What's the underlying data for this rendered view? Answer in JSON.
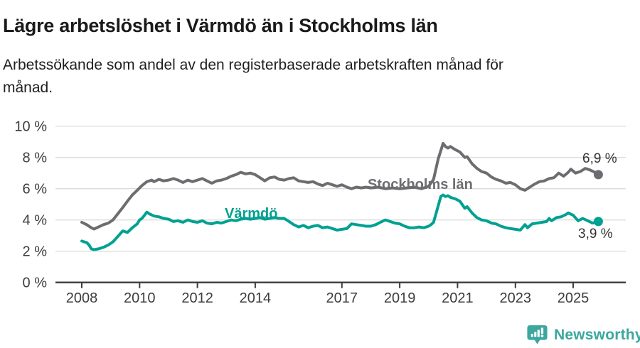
{
  "header": {
    "title": "Lägre arbetslöshet i Värmdö än i Stockholms län",
    "subtitle": {
      "text": "Arbetssökande som andel av den registerbaserade arbetskraften månad för månad.",
      "line1": "Arbetssökande som andel av den registerbaserade arbetskraften månad för",
      "line2": "månad."
    }
  },
  "chart_data": {
    "type": "line",
    "title": "Lägre arbetslöshet i Värmdö än i Stockholms län",
    "subtitle": "Arbetssökande som andel av den registerbaserade arbetskraften månad för månad.",
    "xlabel": "",
    "ylabel": "",
    "unit": "%",
    "decimal_separator": ",",
    "grid": true,
    "legend_position": "inline-labels-on-lines",
    "ylim": [
      0,
      10
    ],
    "xlim": [
      2007.1,
      2026.8
    ],
    "y_ticks": [
      {
        "value": 10,
        "label": "10 %"
      },
      {
        "value": 8,
        "label": "8 %"
      },
      {
        "value": 6,
        "label": "6 %"
      },
      {
        "value": 4,
        "label": "4 %"
      },
      {
        "value": 2,
        "label": "2 %"
      },
      {
        "value": 0,
        "label": "0 %"
      }
    ],
    "x_ticks": [
      {
        "value": 2008,
        "label": "2008"
      },
      {
        "value": 2010,
        "label": "2010"
      },
      {
        "value": 2012,
        "label": "2012"
      },
      {
        "value": 2014,
        "label": "2014"
      },
      {
        "value": 2017,
        "label": "2017"
      },
      {
        "value": 2019,
        "label": "2019"
      },
      {
        "value": 2021,
        "label": "2021"
      },
      {
        "value": 2023,
        "label": "2023"
      },
      {
        "value": 2025,
        "label": "2025"
      }
    ],
    "series": [
      {
        "name": "Stockholms län",
        "color": "#6d6d71",
        "end_value": 6.9,
        "end_label": "6,9 %",
        "points": [
          [
            2008.0,
            3.85
          ],
          [
            2008.17,
            3.7
          ],
          [
            2008.33,
            3.5
          ],
          [
            2008.42,
            3.42
          ],
          [
            2008.58,
            3.55
          ],
          [
            2008.75,
            3.7
          ],
          [
            2008.92,
            3.8
          ],
          [
            2009.08,
            4.0
          ],
          [
            2009.25,
            4.4
          ],
          [
            2009.42,
            4.8
          ],
          [
            2009.58,
            5.2
          ],
          [
            2009.75,
            5.6
          ],
          [
            2009.92,
            5.9
          ],
          [
            2010.08,
            6.2
          ],
          [
            2010.25,
            6.45
          ],
          [
            2010.42,
            6.55
          ],
          [
            2010.5,
            6.45
          ],
          [
            2010.67,
            6.6
          ],
          [
            2010.83,
            6.5
          ],
          [
            2011.0,
            6.55
          ],
          [
            2011.17,
            6.65
          ],
          [
            2011.33,
            6.55
          ],
          [
            2011.5,
            6.4
          ],
          [
            2011.67,
            6.55
          ],
          [
            2011.83,
            6.45
          ],
          [
            2012.0,
            6.55
          ],
          [
            2012.17,
            6.65
          ],
          [
            2012.33,
            6.5
          ],
          [
            2012.5,
            6.35
          ],
          [
            2012.67,
            6.5
          ],
          [
            2012.83,
            6.55
          ],
          [
            2013.0,
            6.65
          ],
          [
            2013.17,
            6.8
          ],
          [
            2013.33,
            6.9
          ],
          [
            2013.5,
            7.05
          ],
          [
            2013.67,
            6.95
          ],
          [
            2013.83,
            7.0
          ],
          [
            2014.0,
            6.9
          ],
          [
            2014.17,
            6.7
          ],
          [
            2014.33,
            6.5
          ],
          [
            2014.5,
            6.7
          ],
          [
            2014.67,
            6.75
          ],
          [
            2014.83,
            6.6
          ],
          [
            2015.0,
            6.55
          ],
          [
            2015.17,
            6.65
          ],
          [
            2015.33,
            6.7
          ],
          [
            2015.5,
            6.5
          ],
          [
            2015.67,
            6.45
          ],
          [
            2015.83,
            6.4
          ],
          [
            2016.0,
            6.45
          ],
          [
            2016.17,
            6.3
          ],
          [
            2016.33,
            6.2
          ],
          [
            2016.5,
            6.35
          ],
          [
            2016.67,
            6.25
          ],
          [
            2016.83,
            6.15
          ],
          [
            2017.0,
            6.25
          ],
          [
            2017.17,
            6.1
          ],
          [
            2017.33,
            6.0
          ],
          [
            2017.5,
            6.1
          ],
          [
            2017.67,
            6.05
          ],
          [
            2017.83,
            6.1
          ],
          [
            2018.0,
            6.05
          ],
          [
            2018.25,
            6.1
          ],
          [
            2018.5,
            6.0
          ],
          [
            2018.75,
            6.05
          ],
          [
            2019.0,
            6.0
          ],
          [
            2019.25,
            6.05
          ],
          [
            2019.5,
            6.1
          ],
          [
            2019.75,
            6.0
          ],
          [
            2020.0,
            6.15
          ],
          [
            2020.17,
            6.6
          ],
          [
            2020.33,
            7.9
          ],
          [
            2020.5,
            8.9
          ],
          [
            2020.58,
            8.7
          ],
          [
            2020.67,
            8.6
          ],
          [
            2020.75,
            8.7
          ],
          [
            2020.92,
            8.5
          ],
          [
            2021.08,
            8.35
          ],
          [
            2021.25,
            8.0
          ],
          [
            2021.33,
            8.05
          ],
          [
            2021.5,
            7.6
          ],
          [
            2021.67,
            7.3
          ],
          [
            2021.83,
            7.1
          ],
          [
            2022.0,
            7.0
          ],
          [
            2022.17,
            6.75
          ],
          [
            2022.33,
            6.6
          ],
          [
            2022.5,
            6.5
          ],
          [
            2022.67,
            6.35
          ],
          [
            2022.83,
            6.4
          ],
          [
            2023.0,
            6.25
          ],
          [
            2023.17,
            6.0
          ],
          [
            2023.33,
            5.9
          ],
          [
            2023.5,
            6.1
          ],
          [
            2023.67,
            6.3
          ],
          [
            2023.83,
            6.45
          ],
          [
            2024.0,
            6.5
          ],
          [
            2024.17,
            6.65
          ],
          [
            2024.33,
            6.7
          ],
          [
            2024.5,
            7.0
          ],
          [
            2024.67,
            6.8
          ],
          [
            2024.83,
            7.05
          ],
          [
            2024.92,
            7.25
          ],
          [
            2025.08,
            7.0
          ],
          [
            2025.25,
            7.1
          ],
          [
            2025.42,
            7.3
          ],
          [
            2025.58,
            7.2
          ],
          [
            2025.75,
            7.05
          ],
          [
            2025.87,
            6.9
          ]
        ]
      },
      {
        "name": "Värmdö",
        "color": "#00a192",
        "end_value": 3.9,
        "end_label": "3,9 %",
        "points": [
          [
            2008.0,
            2.65
          ],
          [
            2008.08,
            2.6
          ],
          [
            2008.17,
            2.55
          ],
          [
            2008.25,
            2.4
          ],
          [
            2008.33,
            2.15
          ],
          [
            2008.42,
            2.1
          ],
          [
            2008.58,
            2.15
          ],
          [
            2008.75,
            2.25
          ],
          [
            2008.92,
            2.4
          ],
          [
            2009.08,
            2.6
          ],
          [
            2009.25,
            2.95
          ],
          [
            2009.42,
            3.3
          ],
          [
            2009.5,
            3.25
          ],
          [
            2009.58,
            3.2
          ],
          [
            2009.75,
            3.5
          ],
          [
            2009.92,
            3.75
          ],
          [
            2010.0,
            4.0
          ],
          [
            2010.08,
            4.1
          ],
          [
            2010.17,
            4.3
          ],
          [
            2010.25,
            4.5
          ],
          [
            2010.33,
            4.4
          ],
          [
            2010.5,
            4.25
          ],
          [
            2010.67,
            4.2
          ],
          [
            2010.83,
            4.1
          ],
          [
            2011.0,
            4.05
          ],
          [
            2011.17,
            3.9
          ],
          [
            2011.33,
            3.95
          ],
          [
            2011.5,
            3.85
          ],
          [
            2011.67,
            4.0
          ],
          [
            2011.83,
            3.9
          ],
          [
            2012.0,
            3.85
          ],
          [
            2012.17,
            3.95
          ],
          [
            2012.33,
            3.8
          ],
          [
            2012.5,
            3.75
          ],
          [
            2012.67,
            3.85
          ],
          [
            2012.83,
            3.8
          ],
          [
            2013.0,
            3.9
          ],
          [
            2013.17,
            4.0
          ],
          [
            2013.33,
            3.95
          ],
          [
            2013.5,
            4.05
          ],
          [
            2013.67,
            4.1
          ],
          [
            2013.83,
            4.05
          ],
          [
            2014.0,
            4.1
          ],
          [
            2014.17,
            4.15
          ],
          [
            2014.33,
            4.05
          ],
          [
            2014.5,
            4.1
          ],
          [
            2014.67,
            4.15
          ],
          [
            2014.83,
            4.1
          ],
          [
            2015.0,
            4.1
          ],
          [
            2015.17,
            3.9
          ],
          [
            2015.33,
            3.7
          ],
          [
            2015.5,
            3.55
          ],
          [
            2015.67,
            3.65
          ],
          [
            2015.83,
            3.5
          ],
          [
            2016.0,
            3.6
          ],
          [
            2016.17,
            3.65
          ],
          [
            2016.33,
            3.5
          ],
          [
            2016.5,
            3.55
          ],
          [
            2016.67,
            3.45
          ],
          [
            2016.83,
            3.35
          ],
          [
            2017.0,
            3.4
          ],
          [
            2017.17,
            3.45
          ],
          [
            2017.33,
            3.75
          ],
          [
            2017.5,
            3.7
          ],
          [
            2017.67,
            3.65
          ],
          [
            2017.83,
            3.6
          ],
          [
            2018.0,
            3.6
          ],
          [
            2018.17,
            3.7
          ],
          [
            2018.33,
            3.85
          ],
          [
            2018.5,
            4.0
          ],
          [
            2018.67,
            3.9
          ],
          [
            2018.83,
            3.8
          ],
          [
            2019.0,
            3.75
          ],
          [
            2019.17,
            3.6
          ],
          [
            2019.33,
            3.5
          ],
          [
            2019.5,
            3.5
          ],
          [
            2019.67,
            3.55
          ],
          [
            2019.83,
            3.5
          ],
          [
            2020.0,
            3.6
          ],
          [
            2020.08,
            3.7
          ],
          [
            2020.17,
            3.85
          ],
          [
            2020.33,
            4.9
          ],
          [
            2020.42,
            5.5
          ],
          [
            2020.5,
            5.6
          ],
          [
            2020.58,
            5.5
          ],
          [
            2020.67,
            5.55
          ],
          [
            2020.75,
            5.45
          ],
          [
            2020.92,
            5.35
          ],
          [
            2021.08,
            5.2
          ],
          [
            2021.25,
            4.75
          ],
          [
            2021.33,
            4.85
          ],
          [
            2021.5,
            4.45
          ],
          [
            2021.67,
            4.15
          ],
          [
            2021.83,
            4.0
          ],
          [
            2022.0,
            3.95
          ],
          [
            2022.17,
            3.8
          ],
          [
            2022.33,
            3.75
          ],
          [
            2022.5,
            3.6
          ],
          [
            2022.67,
            3.5
          ],
          [
            2022.83,
            3.45
          ],
          [
            2023.0,
            3.4
          ],
          [
            2023.17,
            3.35
          ],
          [
            2023.33,
            3.7
          ],
          [
            2023.42,
            3.5
          ],
          [
            2023.58,
            3.75
          ],
          [
            2023.75,
            3.8
          ],
          [
            2023.92,
            3.85
          ],
          [
            2024.08,
            3.9
          ],
          [
            2024.17,
            4.1
          ],
          [
            2024.25,
            3.95
          ],
          [
            2024.42,
            4.15
          ],
          [
            2024.58,
            4.2
          ],
          [
            2024.75,
            4.35
          ],
          [
            2024.83,
            4.45
          ],
          [
            2025.0,
            4.3
          ],
          [
            2025.17,
            3.95
          ],
          [
            2025.33,
            4.1
          ],
          [
            2025.5,
            3.95
          ],
          [
            2025.67,
            3.8
          ],
          [
            2025.87,
            3.9
          ]
        ]
      }
    ],
    "colors": {
      "stockholms_lan": "#6d6d71",
      "varmdo": "#00a192",
      "gridline": "#dcdcdc",
      "axis": "#3d3d3d",
      "value_label": "#333333"
    }
  },
  "footer": {
    "brand": "Newsworthy",
    "brand_color": "#3ba79f",
    "icon": "newsworthy-barchart-bubble-icon"
  }
}
